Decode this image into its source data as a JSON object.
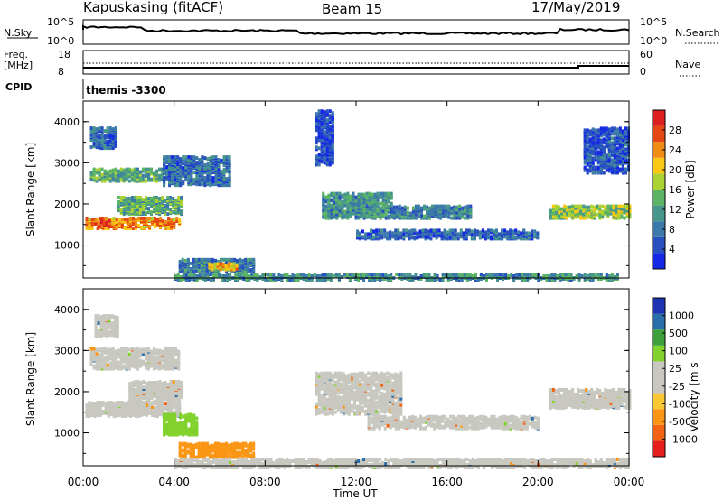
{
  "header": {
    "station": "Kapuskasing (fitACF)",
    "beam": "Beam 15",
    "date": "17/May/2019"
  },
  "top_panels": {
    "nsky_label": "N.Sky",
    "nsky_left_ticks": [
      "10^5",
      "10^0"
    ],
    "nsearch_label": "N.Search",
    "nsearch_right_ticks": [
      "10^5",
      "10^0"
    ],
    "freq_label": "Freq.",
    "freq_unit": "[MHz]",
    "freq_ticks": [
      "18",
      "8"
    ],
    "nave_label": "Nave",
    "nave_ticks": [
      "60",
      "0"
    ],
    "cpid_label": "CPID",
    "cpid_value": "themis -3300"
  },
  "colors": {
    "power_scale": [
      "#1428e6",
      "#2850be",
      "#3c78aa",
      "#46968c",
      "#5ab464",
      "#aad232",
      "#fac814",
      "#f08c14",
      "#e64614",
      "#dc1e1e"
    ],
    "velocity_scale": [
      "#e61e1e",
      "#f06414",
      "#fa9614",
      "#fac832",
      "#c8c8c0",
      "#c8c8c0",
      "#82d22d",
      "#3ca03c",
      "#286eaa",
      "#1e32b4"
    ],
    "ground_scatter": "#c8c8c0"
  },
  "chart_data": [
    {
      "type": "heatmap",
      "name": "power",
      "ylabel": "Slant Range [km]",
      "y_ticks": [
        "1000",
        "2000",
        "3000",
        "4000"
      ],
      "ylim": [
        200,
        4500
      ],
      "colorbar_label": "Power [dB]",
      "colorbar_ticks": [
        "4",
        "8",
        "12",
        "16",
        "20",
        "24",
        "28"
      ],
      "zlim": [
        0,
        30
      ],
      "regions": [
        {
          "t": [
            0.1,
            4.2
          ],
          "r": [
            1450,
            1700
          ],
          "z": 22
        },
        {
          "t": [
            0.5,
            1.2
          ],
          "r": [
            1500,
            1650
          ],
          "z": 28
        },
        {
          "t": [
            0.3,
            3.5
          ],
          "r": [
            2600,
            2900
          ],
          "z": 12
        },
        {
          "t": [
            1.5,
            4.3
          ],
          "r": [
            1800,
            2200
          ],
          "z": 12
        },
        {
          "t": [
            3.5,
            6.5
          ],
          "r": [
            2500,
            3200
          ],
          "z": 7
        },
        {
          "t": [
            0.3,
            1.5
          ],
          "r": [
            3400,
            3900
          ],
          "z": 6
        },
        {
          "t": [
            4.2,
            7.5
          ],
          "r": [
            400,
            700
          ],
          "z": 8
        },
        {
          "t": [
            5.5,
            6.8
          ],
          "r": [
            450,
            600
          ],
          "z": 20
        },
        {
          "t": [
            10.5,
            13.5
          ],
          "r": [
            1700,
            2300
          ],
          "z": 10
        },
        {
          "t": [
            12.0,
            20.0
          ],
          "r": [
            1200,
            1400
          ],
          "z": 6
        },
        {
          "t": [
            13.5,
            17.0
          ],
          "r": [
            1700,
            2000
          ],
          "z": 8
        },
        {
          "t": [
            20.5,
            24.0
          ],
          "r": [
            1700,
            2000
          ],
          "z": 15
        },
        {
          "t": [
            22.0,
            24.0
          ],
          "r": [
            2800,
            3900
          ],
          "z": 5
        },
        {
          "t": [
            10.2,
            11.0
          ],
          "r": [
            3000,
            4300
          ],
          "z": 4
        },
        {
          "t": [
            4.0,
            23.5
          ],
          "r": [
            200,
            350
          ],
          "z": 10
        }
      ]
    },
    {
      "type": "heatmap",
      "name": "velocity",
      "ylabel": "Slant Range [km]",
      "y_ticks": [
        "1000",
        "2000",
        "3000",
        "4000"
      ],
      "ylim": [
        200,
        4500
      ],
      "colorbar_label": "Velocity [m s",
      "colorbar_ticks": [
        "1000",
        "500",
        "100",
        "25",
        "-25",
        "-100",
        "-500",
        "-1000"
      ],
      "regions": [
        {
          "t": [
            0.1,
            4.3
          ],
          "r": [
            1450,
            1800
          ],
          "v": 0,
          "gs": true
        },
        {
          "t": [
            0.3,
            4.2
          ],
          "r": [
            2600,
            3100
          ],
          "v": 0,
          "gs": true
        },
        {
          "t": [
            2.0,
            4.3
          ],
          "r": [
            1800,
            2300
          ],
          "v": 0,
          "gs": true
        },
        {
          "t": [
            3.5,
            5.0
          ],
          "r": [
            1000,
            1500
          ],
          "v": 150,
          "gs": false
        },
        {
          "t": [
            4.2,
            7.5
          ],
          "r": [
            450,
            800
          ],
          "v": -150,
          "gs": false
        },
        {
          "t": [
            10.2,
            14.0
          ],
          "r": [
            1500,
            2500
          ],
          "v": 0,
          "gs": true
        },
        {
          "t": [
            12.5,
            20.0
          ],
          "r": [
            1150,
            1450
          ],
          "v": 0,
          "gs": true
        },
        {
          "t": [
            20.5,
            24.0
          ],
          "r": [
            1650,
            2100
          ],
          "v": 0,
          "gs": true
        },
        {
          "t": [
            0.5,
            1.5
          ],
          "r": [
            3400,
            3900
          ],
          "v": 0,
          "gs": true
        },
        {
          "t": [
            4.0,
            24.0
          ],
          "r": [
            200,
            400
          ],
          "v": 0,
          "gs": true
        }
      ]
    }
  ],
  "x_axis": {
    "label": "Time UT",
    "ticks": [
      "00:00",
      "04:00",
      "08:00",
      "12:00",
      "16:00",
      "20:00",
      "00:00"
    ]
  }
}
